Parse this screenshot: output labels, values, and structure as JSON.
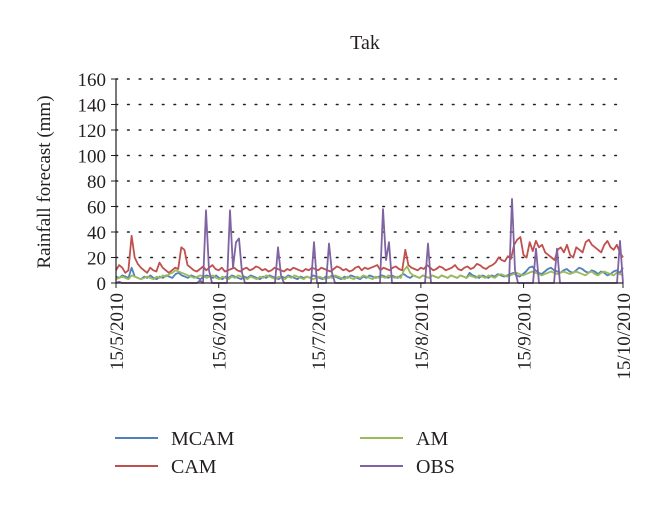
{
  "chart_data": {
    "type": "line",
    "title": "Tak",
    "xlabel": "",
    "ylabel": "Rainfall forecast (mm)",
    "ylim": [
      0,
      160
    ],
    "yticks": [
      "0",
      "20",
      "40",
      "60",
      "80",
      "100",
      "120",
      "140",
      "160"
    ],
    "xticks": [
      "15/5/2010",
      "15/6/2010",
      "15/7/2010",
      "15/8/2010",
      "15/9/2010",
      "15/10/2010"
    ],
    "x_start": "15/5/2010",
    "x_end": "15/10/2010",
    "grid": "horizontal dotted",
    "legend_position": "bottom",
    "colors": {
      "MCAM": "#4f81bd",
      "CAM": "#c0504d",
      "AM": "#9bbb59",
      "OBS": "#8064a2"
    },
    "series": [
      {
        "name": "MCAM",
        "values": [
          5,
          4,
          6,
          5,
          4,
          12,
          5,
          4,
          3,
          5,
          4,
          6,
          4,
          3,
          5,
          4,
          6,
          5,
          4,
          7,
          8,
          6,
          5,
          4,
          6,
          5,
          4,
          3,
          5,
          6,
          5,
          4,
          6,
          4,
          3,
          5,
          4,
          6,
          5,
          4,
          3,
          5,
          4,
          6,
          5,
          4,
          3,
          5,
          4,
          6,
          5,
          4,
          3,
          5,
          4,
          6,
          5,
          4,
          3,
          5,
          4,
          5,
          4,
          6,
          5,
          4,
          3,
          5,
          4,
          6,
          5,
          4,
          3,
          5,
          4,
          6,
          5,
          4,
          3,
          5,
          4,
          6,
          5,
          4,
          5,
          6,
          5,
          4,
          6,
          5,
          4,
          6,
          7,
          5,
          4,
          6,
          5,
          4,
          6,
          5,
          4,
          6,
          5,
          4,
          6,
          5,
          4,
          6,
          5,
          4,
          6,
          5,
          4,
          8,
          6,
          5,
          4,
          6,
          5,
          4,
          6,
          5,
          7,
          6,
          5,
          6,
          7,
          8,
          6,
          5,
          7,
          9,
          12,
          13,
          10,
          8,
          7,
          9,
          11,
          12,
          10,
          9,
          8,
          10,
          11,
          9,
          8,
          10,
          12,
          11,
          9,
          8,
          10,
          9,
          7,
          9,
          8,
          6,
          7,
          9,
          10,
          8,
          12
        ]
      },
      {
        "name": "CAM",
        "values": [
          10,
          14,
          12,
          8,
          10,
          37,
          20,
          15,
          12,
          10,
          8,
          12,
          10,
          9,
          16,
          12,
          10,
          8,
          10,
          12,
          11,
          28,
          26,
          14,
          12,
          10,
          9,
          11,
          13,
          10,
          12,
          14,
          11,
          10,
          12,
          9,
          10,
          11,
          12,
          10,
          9,
          11,
          12,
          10,
          11,
          13,
          12,
          10,
          11,
          9,
          10,
          12,
          11,
          10,
          9,
          11,
          10,
          12,
          11,
          10,
          9,
          11,
          10,
          12,
          11,
          10,
          12,
          11,
          10,
          9,
          11,
          13,
          12,
          10,
          11,
          9,
          10,
          12,
          13,
          10,
          12,
          11,
          12,
          13,
          14,
          10,
          12,
          11,
          10,
          12,
          13,
          11,
          10,
          26,
          14,
          12,
          11,
          10,
          12,
          11,
          14,
          12,
          10,
          11,
          13,
          12,
          10,
          11,
          12,
          14,
          11,
          10,
          12,
          13,
          11,
          12,
          15,
          14,
          12,
          11,
          13,
          14,
          16,
          20,
          18,
          17,
          21,
          19,
          30,
          34,
          36,
          22,
          20,
          32,
          25,
          33,
          28,
          30,
          24,
          22,
          20,
          18,
          26,
          28,
          24,
          30,
          22,
          20,
          28,
          26,
          24,
          32,
          34,
          30,
          28,
          26,
          24,
          30,
          33,
          28,
          26,
          30,
          24,
          20
        ]
      },
      {
        "name": "AM",
        "values": [
          3,
          4,
          5,
          4,
          3,
          6,
          5,
          4,
          3,
          4,
          5,
          4,
          3,
          5,
          4,
          6,
          5,
          7,
          8,
          10,
          9,
          8,
          7,
          6,
          5,
          4,
          5,
          6,
          5,
          4,
          5,
          6,
          4,
          3,
          5,
          4,
          3,
          5,
          4,
          6,
          5,
          4,
          3,
          5,
          4,
          3,
          5,
          4,
          6,
          5,
          4,
          3,
          5,
          4,
          3,
          5,
          4,
          6,
          5,
          4,
          3,
          5,
          4,
          3,
          4,
          5,
          4,
          3,
          5,
          4,
          6,
          5,
          4,
          3,
          5,
          4,
          3,
          5,
          4,
          6,
          5,
          4,
          3,
          5,
          4,
          5,
          4,
          6,
          5,
          4,
          5,
          4,
          10,
          13,
          8,
          6,
          5,
          4,
          6,
          5,
          4,
          6,
          5,
          4,
          6,
          5,
          4,
          6,
          5,
          4,
          6,
          5,
          4,
          6,
          5,
          4,
          6,
          5,
          4,
          6,
          5,
          4,
          6,
          7,
          6,
          5,
          6,
          7,
          8,
          7,
          6,
          7,
          8,
          9,
          8,
          7,
          6,
          7,
          8,
          9,
          8,
          7,
          8,
          9,
          8,
          7,
          8,
          9,
          8,
          7,
          6,
          8,
          9,
          7,
          6,
          8,
          9,
          8,
          7,
          6,
          8,
          7,
          6
        ]
      },
      {
        "name": "OBS",
        "values": [
          0,
          1,
          0,
          0,
          0,
          0,
          0,
          0,
          0,
          0,
          0,
          0,
          0,
          0,
          0,
          0,
          0,
          0,
          0,
          0,
          0,
          0,
          0,
          0,
          0,
          0,
          0,
          0,
          2,
          0,
          57,
          10,
          0,
          0,
          0,
          0,
          0,
          0,
          57,
          12,
          32,
          35,
          8,
          0,
          0,
          0,
          0,
          0,
          0,
          0,
          0,
          0,
          0,
          0,
          28,
          6,
          0,
          0,
          0,
          0,
          0,
          0,
          0,
          0,
          0,
          0,
          32,
          0,
          0,
          0,
          0,
          31,
          8,
          0,
          0,
          0,
          0,
          0,
          0,
          0,
          0,
          0,
          0,
          0,
          0,
          0,
          0,
          0,
          0,
          58,
          18,
          32,
          0,
          0,
          0,
          0,
          0,
          0,
          0,
          0,
          0,
          0,
          0,
          0,
          31,
          0,
          0,
          0,
          0,
          0,
          0,
          0,
          0,
          0,
          0,
          0,
          0,
          0,
          0,
          0,
          0,
          0,
          0,
          0,
          0,
          0,
          0,
          0,
          0,
          0,
          0,
          0,
          66,
          10,
          0,
          0,
          0,
          0,
          0,
          0,
          27,
          0,
          0,
          0,
          0,
          0,
          0,
          27,
          0,
          0,
          0,
          0,
          0,
          0,
          0,
          0,
          0,
          0,
          0,
          0,
          0,
          0,
          0,
          0,
          0,
          0,
          0,
          0,
          33,
          0
        ]
      }
    ]
  }
}
